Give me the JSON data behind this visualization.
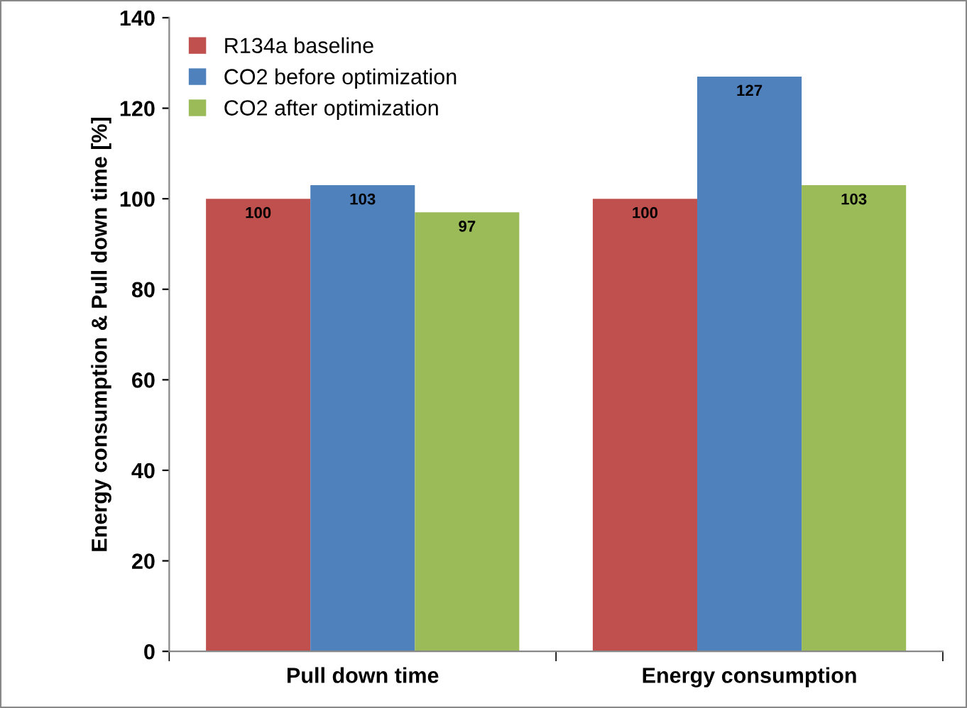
{
  "chart_data": {
    "type": "bar",
    "ylabel": "Energy consumption & Pull down time [%]",
    "categories": [
      "Pull down time",
      "Energy consumption"
    ],
    "series": [
      {
        "name": "R134a baseline",
        "color": "#c0504d",
        "values": [
          100,
          100
        ]
      },
      {
        "name": "CO2 before optimization",
        "color": "#4f81bd",
        "values": [
          103,
          127
        ]
      },
      {
        "name": "CO2 after optimization",
        "color": "#9bbb59",
        "values": [
          97,
          103
        ]
      }
    ],
    "ylim": [
      0,
      140
    ],
    "yticks": [
      0,
      20,
      40,
      60,
      80,
      100,
      120,
      140
    ],
    "grid": false,
    "legend": "top left",
    "data_labels": true
  }
}
